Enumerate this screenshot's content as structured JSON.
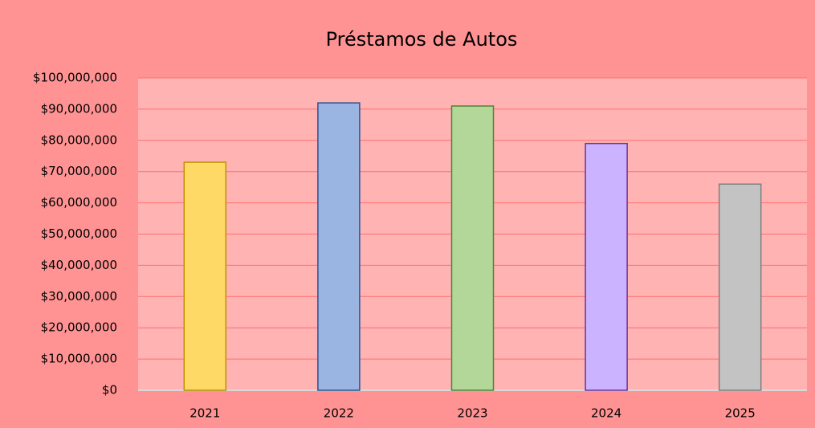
{
  "chart_data": {
    "type": "bar",
    "title": "Préstamos de Autos",
    "categories": [
      "2021",
      "2022",
      "2023",
      "2024",
      "2025"
    ],
    "values": [
      73000000,
      92000000,
      91000000,
      79000000,
      66000000
    ],
    "colors": [
      "#ffd966",
      "#9bb5e2",
      "#b3d699",
      "#ccb3ff",
      "#c3c3c3"
    ],
    "edgecolors": [
      "#bf9000",
      "#2f528f",
      "#548235",
      "#7030a0",
      "#7f7f7f"
    ],
    "ylim": [
      0,
      100000000
    ],
    "yticks": [
      {
        "value": 0,
        "label": "$0"
      },
      {
        "value": 10000000,
        "label": "$10,000,000"
      },
      {
        "value": 20000000,
        "label": "$20,000,000"
      },
      {
        "value": 30000000,
        "label": "$30,000,000"
      },
      {
        "value": 40000000,
        "label": "$40,000,000"
      },
      {
        "value": 50000000,
        "label": "$50,000,000"
      },
      {
        "value": 60000000,
        "label": "$60,000,000"
      },
      {
        "value": 70000000,
        "label": "$70,000,000"
      },
      {
        "value": 80000000,
        "label": "$80,000,000"
      },
      {
        "value": 90000000,
        "label": "$90,000,000"
      },
      {
        "value": 100000000,
        "label": "$100,000,000"
      }
    ],
    "grid": true
  }
}
